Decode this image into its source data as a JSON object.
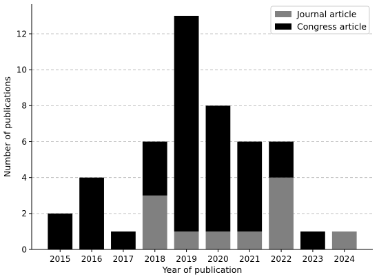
{
  "chart_data": {
    "type": "bar",
    "stacked": true,
    "categories": [
      "2015",
      "2016",
      "2017",
      "2018",
      "2019",
      "2020",
      "2021",
      "2022",
      "2023",
      "2024"
    ],
    "series": [
      {
        "name": "Journal article",
        "color": "#808080",
        "values": [
          0,
          0,
          0,
          3,
          1,
          1,
          1,
          4,
          0,
          1
        ]
      },
      {
        "name": "Congress article",
        "color": "#000000",
        "values": [
          2,
          4,
          1,
          3,
          12,
          7,
          5,
          2,
          1,
          0
        ]
      }
    ],
    "xlabel": "Year of publication",
    "ylabel": "Number of publications",
    "ylim": [
      0,
      13.65
    ],
    "yticks": [
      0,
      2,
      4,
      6,
      8,
      10,
      12
    ],
    "grid": "horizontal dashed",
    "legend_position": "top-right"
  }
}
